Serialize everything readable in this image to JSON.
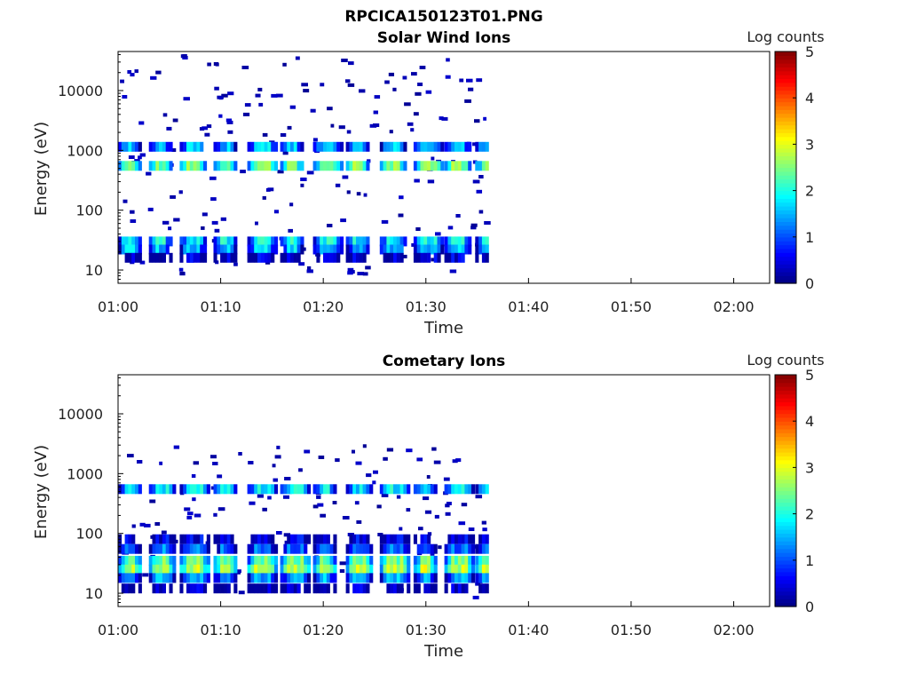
{
  "figure": {
    "title": "RPCICA150123T01.PNG"
  },
  "chart_data": [
    {
      "type": "heatmap",
      "title": "Solar Wind Ions",
      "xlabel": "Time",
      "ylabel": "Energy (eV)",
      "x_ticks": [
        "01:00",
        "01:10",
        "01:20",
        "01:30",
        "01:40",
        "01:50",
        "02:00"
      ],
      "x_range_minutes": [
        0,
        63.5
      ],
      "data_end_minute": 36,
      "y_scale": "log",
      "y_ticks": [
        "10",
        "100",
        "1000",
        "10000"
      ],
      "y_range_ev": [
        6,
        45000
      ],
      "colorbar": {
        "label": "Log counts",
        "range": [
          0,
          5
        ],
        "ticks": [
          "0",
          "1",
          "2",
          "3",
          "4",
          "5"
        ],
        "colormap": "jet"
      },
      "scan_start_minutes": [
        0,
        3,
        6,
        9.3,
        12.6,
        15.8,
        19,
        22.2,
        25.5,
        28.8,
        31.8,
        34.8
      ],
      "bands": [
        {
          "energy_ev": 550,
          "log_counts": 2.5
        },
        {
          "energy_ev": 1150,
          "log_counts": 1.6
        },
        {
          "energy_ev": 30,
          "log_counts": 1.9
        },
        {
          "energy_ev": 22,
          "log_counts": 1.6
        },
        {
          "energy_ev": 16,
          "log_counts": 0.4
        }
      ]
    },
    {
      "type": "heatmap",
      "title": "Cometary Ions",
      "xlabel": "Time",
      "ylabel": "Energy (eV)",
      "x_ticks": [
        "01:00",
        "01:10",
        "01:20",
        "01:30",
        "01:40",
        "01:50",
        "02:00"
      ],
      "x_range_minutes": [
        0,
        63.5
      ],
      "data_end_minute": 36,
      "y_scale": "log",
      "y_ticks": [
        "10",
        "100",
        "1000",
        "10000"
      ],
      "y_range_ev": [
        6,
        45000
      ],
      "colorbar": {
        "label": "Log counts",
        "range": [
          0,
          5
        ],
        "ticks": [
          "0",
          "1",
          "2",
          "3",
          "4",
          "5"
        ],
        "colormap": "jet"
      },
      "scan_start_minutes": [
        0,
        3,
        6,
        9.3,
        12.6,
        15.8,
        19,
        22.2,
        25.5,
        28.8,
        31.8,
        34.8
      ],
      "bands": [
        {
          "energy_ev": 550,
          "log_counts": 1.8
        },
        {
          "energy_ev": 80,
          "log_counts": 0.5
        },
        {
          "energy_ev": 55,
          "log_counts": 1.2
        },
        {
          "energy_ev": 35,
          "log_counts": 2.4
        },
        {
          "energy_ev": 25,
          "log_counts": 2.8
        },
        {
          "energy_ev": 18,
          "log_counts": 1.5
        },
        {
          "energy_ev": 12,
          "log_counts": 0.3
        }
      ]
    }
  ]
}
